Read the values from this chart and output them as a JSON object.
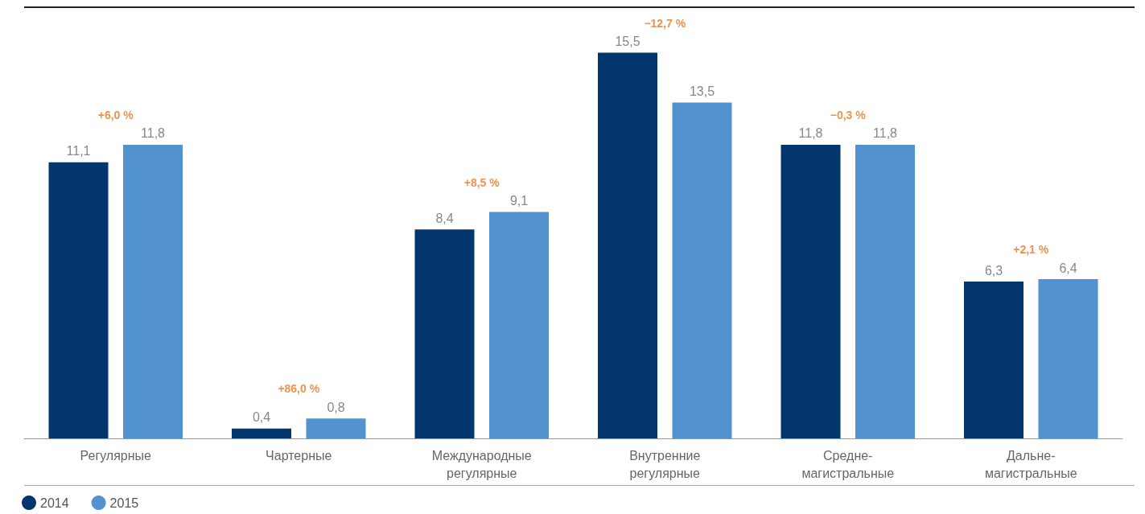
{
  "chart_data": {
    "type": "bar",
    "categories": [
      "Регулярные",
      "Чартерные",
      "Международные\nрегулярные",
      "Внутренние\nрегулярные",
      "Средне-\nмагистральные",
      "Дальне-\nмагистральные"
    ],
    "series": [
      {
        "name": "2014",
        "color": "#03366d",
        "values": [
          11.1,
          0.4,
          8.4,
          15.5,
          11.8,
          6.3
        ],
        "value_labels": [
          "11,1",
          "0,4",
          "8,4",
          "15,5",
          "11,8",
          "6,3"
        ]
      },
      {
        "name": "2015",
        "color": "#5192cf",
        "values": [
          11.8,
          0.8,
          9.1,
          13.5,
          11.8,
          6.4
        ],
        "value_labels": [
          "11,8",
          "0,8",
          "9,1",
          "13,5",
          "11,8",
          "6,4"
        ]
      }
    ],
    "legend": "bottom left",
    "grid": false,
    "annotations": [
      "+6,0 %",
      "+86,0 %",
      "+8,5 %",
      "−12,7 %",
      "−0,3 %",
      "+2,1 %"
    ]
  }
}
